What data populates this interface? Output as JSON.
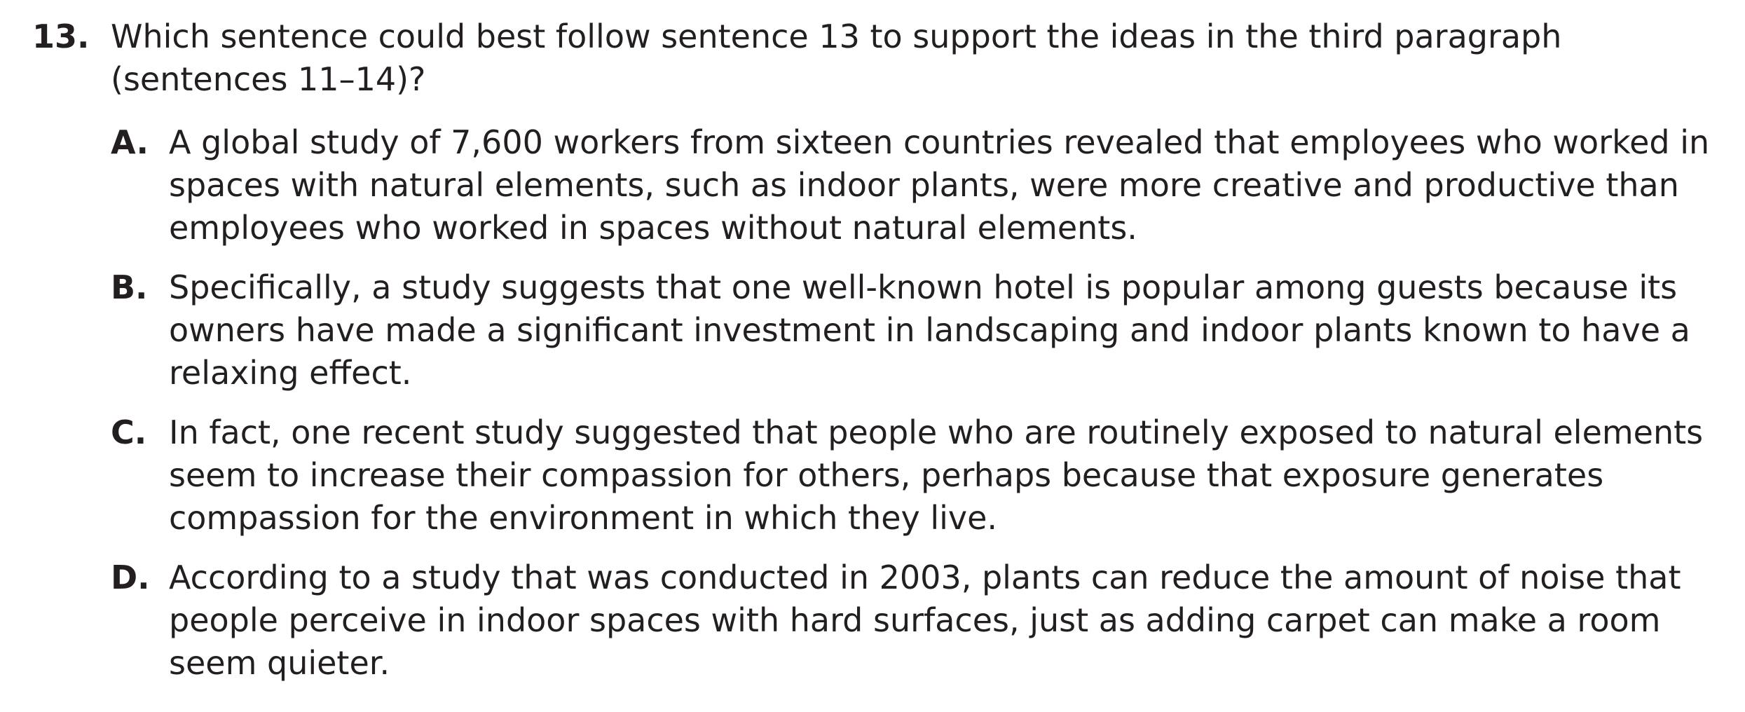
{
  "question": {
    "number": "13.",
    "stem": "Which sentence could best follow sentence 13 to support the ideas in the third paragraph (sentences 11–14)?",
    "options": [
      {
        "letter": "A.",
        "text": "A global study of 7,600 workers from sixteen countries revealed that employees who worked in spaces with natural elements, such as indoor plants, were more creative and productive than employees who worked in spaces without natural elements."
      },
      {
        "letter": "B.",
        "text": "Specifically, a study suggests that one well-known hotel is popular among guests because its owners have made a significant investment in landscaping and indoor plants known to have a relaxing effect."
      },
      {
        "letter": "C.",
        "text": "In fact, one recent study suggested that people who are routinely exposed to natural elements seem to increase their compassion for others, perhaps because that exposure generates compassion for the environment in which they live."
      },
      {
        "letter": "D.",
        "text": "According to a study that was conducted in 2003, plants can reduce the amount of noise that people perceive in indoor spaces with hard surfaces, just as adding carpet can make a room seem quieter."
      }
    ]
  }
}
